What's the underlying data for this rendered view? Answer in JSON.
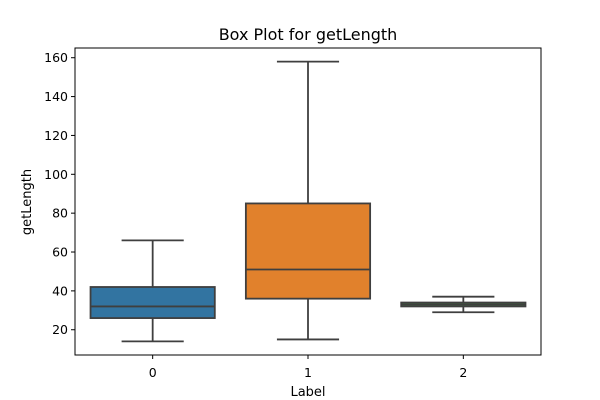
{
  "chart_data": {
    "type": "box",
    "title": "Box Plot for getLength",
    "xlabel": "Label",
    "ylabel": "getLength",
    "ylim": [
      7,
      165
    ],
    "yticks": [
      20,
      40,
      60,
      80,
      100,
      120,
      140,
      160
    ],
    "categories": [
      "0",
      "1",
      "2"
    ],
    "grid": false,
    "boxes": [
      {
        "category": "0",
        "whisker_low": 14,
        "q1": 26,
        "median": 32,
        "q3": 42,
        "whisker_high": 66,
        "color": "#3274a1"
      },
      {
        "category": "1",
        "whisker_low": 15,
        "q1": 36,
        "median": 51,
        "q3": 85,
        "whisker_high": 158,
        "color": "#e1812c"
      },
      {
        "category": "2",
        "whisker_low": 29,
        "q1": 32,
        "median": 33,
        "q3": 34,
        "whisker_high": 37,
        "color": "#3a923a"
      }
    ]
  }
}
